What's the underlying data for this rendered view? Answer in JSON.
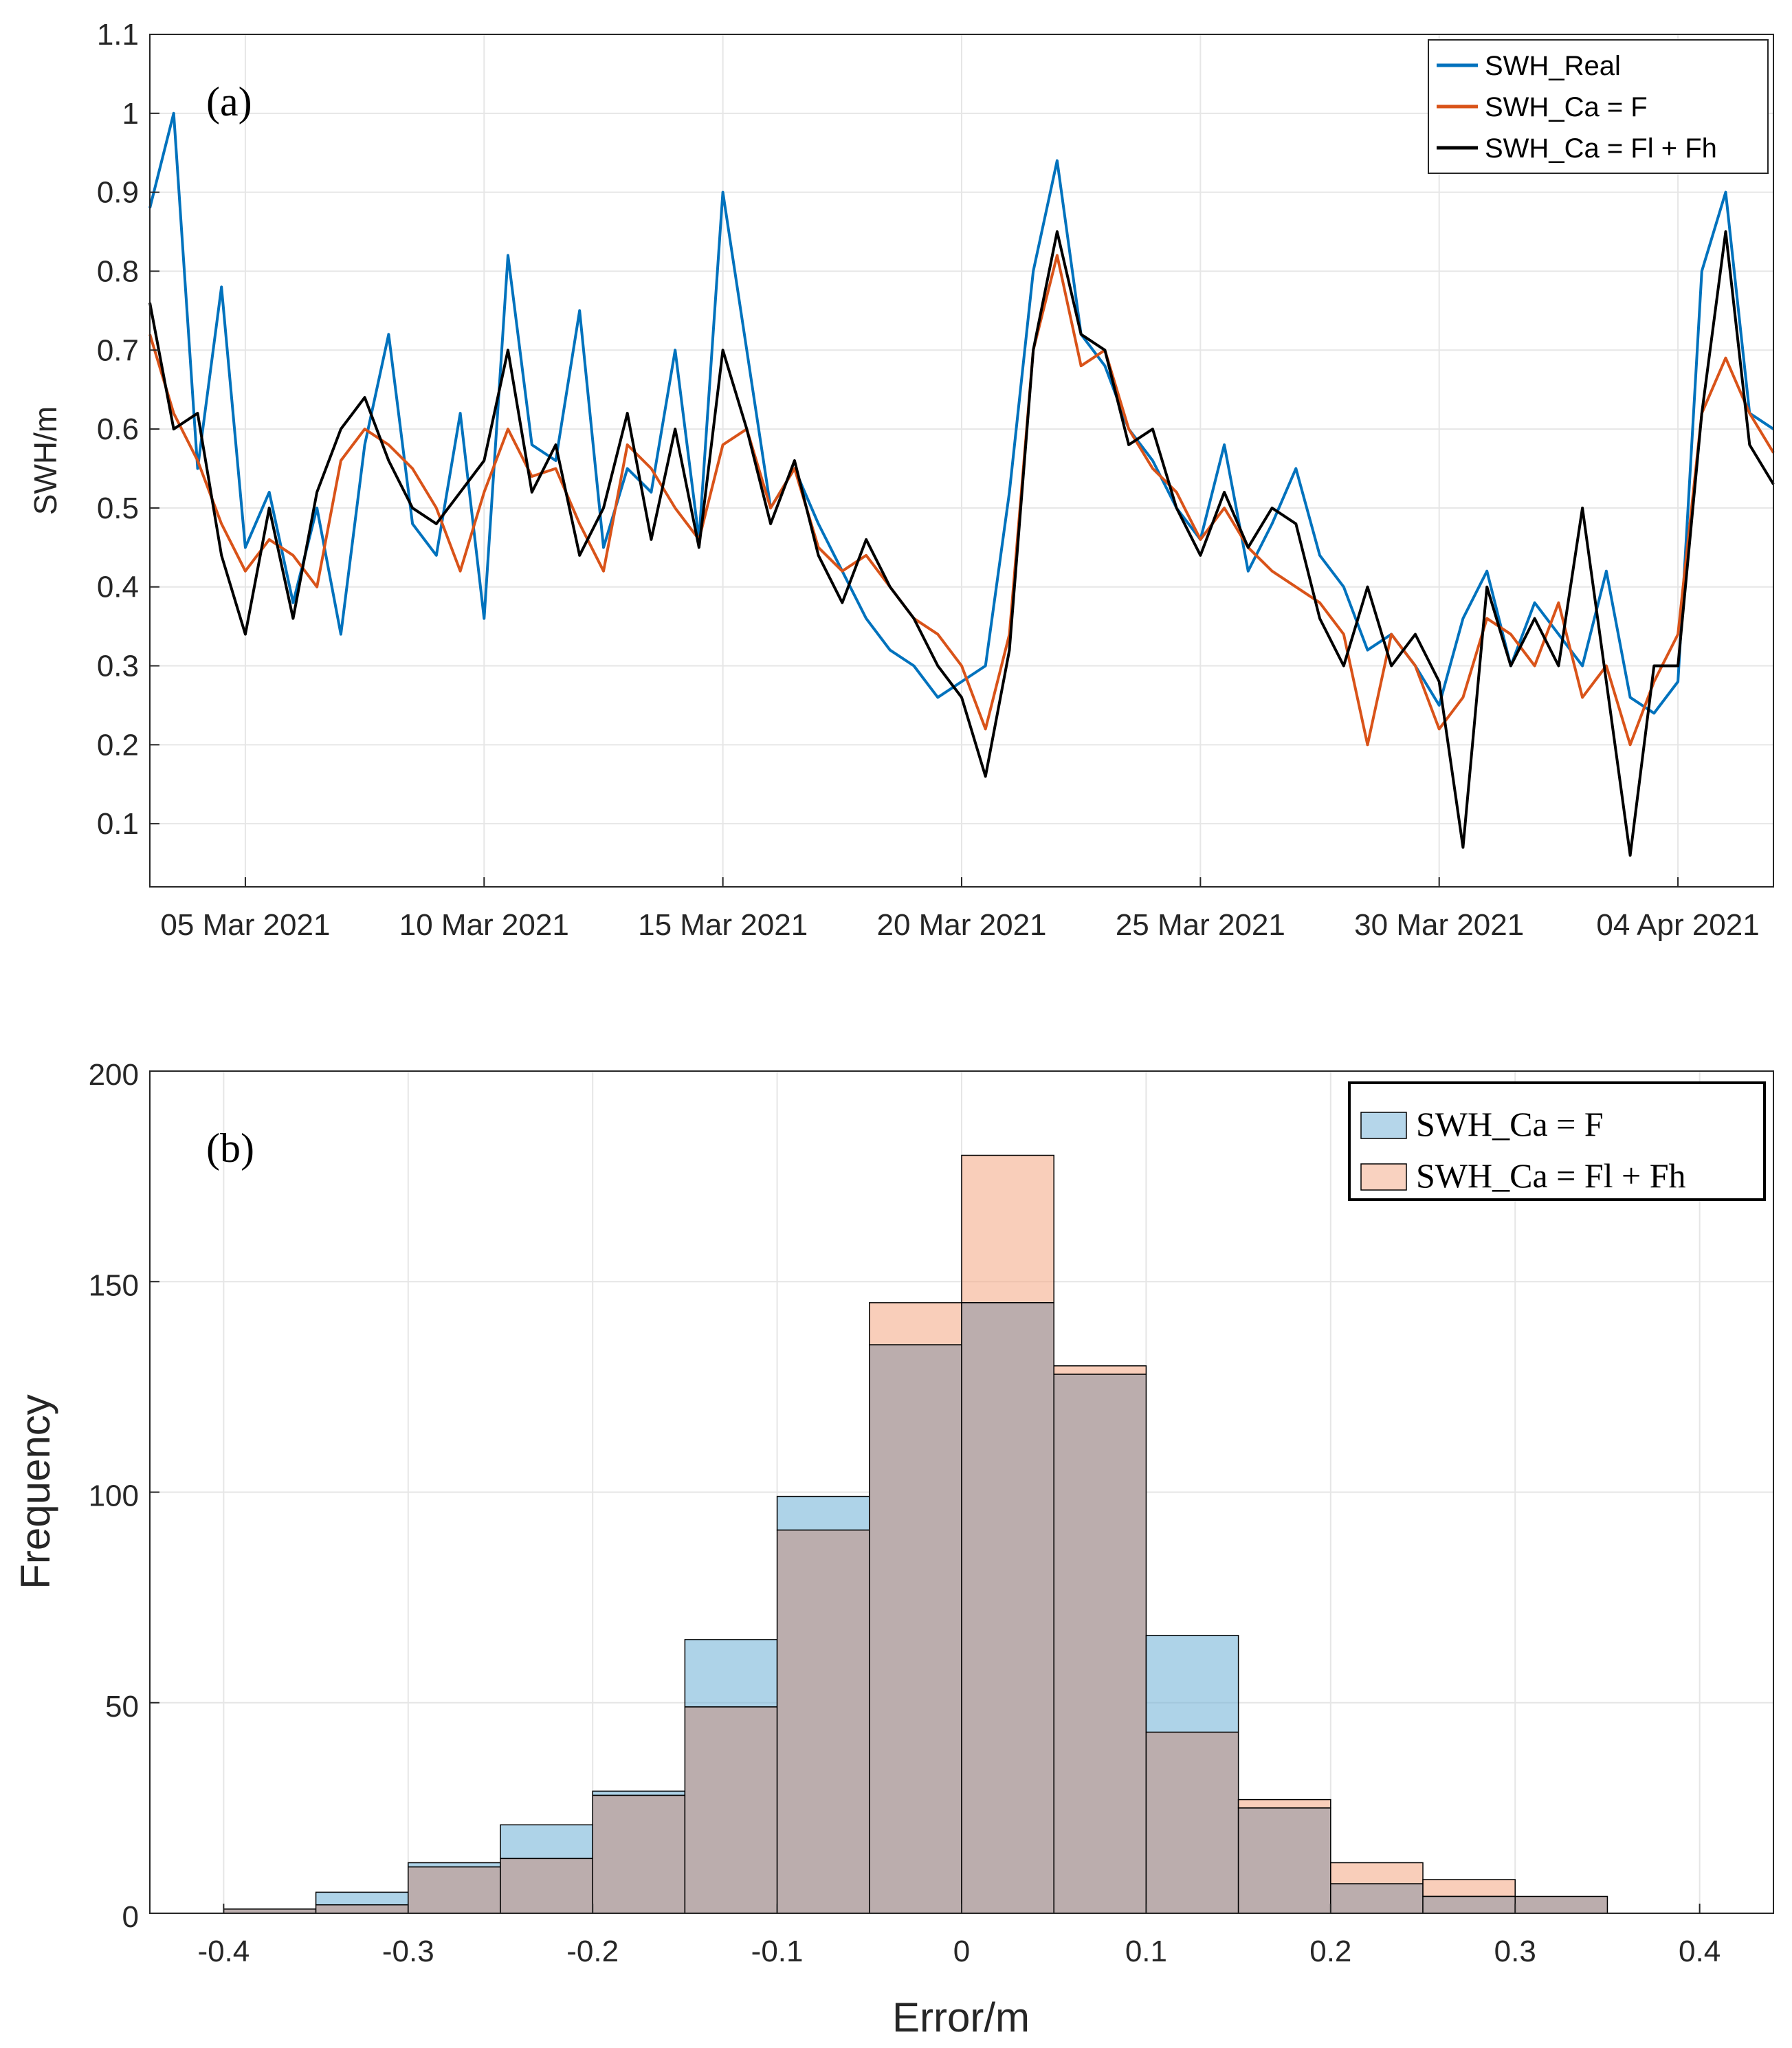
{
  "chart_data": [
    {
      "type": "line",
      "panel_label": "(a)",
      "ylabel": "SWH/m",
      "ylim": [
        0.02,
        1.1
      ],
      "yticks": [
        0.1,
        0.2,
        0.3,
        0.4,
        0.5,
        0.6,
        0.7,
        0.8,
        0.9,
        1,
        1.1
      ],
      "xlim": [
        "2021-03-03",
        "2021-04-06"
      ],
      "xticks": [
        {
          "date": "2021-03-05",
          "label": "05 Mar 2021"
        },
        {
          "date": "2021-03-10",
          "label": "10 Mar 2021"
        },
        {
          "date": "2021-03-15",
          "label": "15 Mar 2021"
        },
        {
          "date": "2021-03-20",
          "label": "20 Mar 2021"
        },
        {
          "date": "2021-03-25",
          "label": "25 Mar 2021"
        },
        {
          "date": "2021-03-30",
          "label": "30 Mar 2021"
        },
        {
          "date": "2021-04-04",
          "label": "04 Apr 2021"
        }
      ],
      "grid": true,
      "legend_position": "top-right",
      "series": [
        {
          "name": "SWH_Real",
          "color": "#0072BD",
          "x": [
            "2021-03-03",
            "2021-03-03 12:00",
            "2021-03-04",
            "2021-03-04 12:00",
            "2021-03-05",
            "2021-03-05 12:00",
            "2021-03-06",
            "2021-03-06 12:00",
            "2021-03-07",
            "2021-03-07 12:00",
            "2021-03-08",
            "2021-03-08 12:00",
            "2021-03-09",
            "2021-03-09 12:00",
            "2021-03-10",
            "2021-03-10 12:00",
            "2021-03-11",
            "2021-03-11 12:00",
            "2021-03-12",
            "2021-03-12 12:00",
            "2021-03-13",
            "2021-03-13 12:00",
            "2021-03-14",
            "2021-03-14 12:00",
            "2021-03-15",
            "2021-03-15 12:00",
            "2021-03-16",
            "2021-03-16 12:00",
            "2021-03-17",
            "2021-03-17 12:00",
            "2021-03-18",
            "2021-03-18 12:00",
            "2021-03-19",
            "2021-03-19 12:00",
            "2021-03-20",
            "2021-03-20 12:00",
            "2021-03-21",
            "2021-03-21 12:00",
            "2021-03-22",
            "2021-03-22 12:00",
            "2021-03-23",
            "2021-03-23 12:00",
            "2021-03-24",
            "2021-03-24 12:00",
            "2021-03-25",
            "2021-03-25 12:00",
            "2021-03-26",
            "2021-03-26 12:00",
            "2021-03-27",
            "2021-03-27 12:00",
            "2021-03-28",
            "2021-03-28 12:00",
            "2021-03-29",
            "2021-03-29 12:00",
            "2021-03-30",
            "2021-03-30 12:00",
            "2021-03-31",
            "2021-03-31 12:00",
            "2021-04-01",
            "2021-04-01 12:00",
            "2021-04-02",
            "2021-04-02 12:00",
            "2021-04-03",
            "2021-04-03 12:00",
            "2021-04-04",
            "2021-04-04 12:00",
            "2021-04-05",
            "2021-04-05 12:00",
            "2021-04-06"
          ],
          "y": [
            0.88,
            1.0,
            0.55,
            0.78,
            0.45,
            0.52,
            0.38,
            0.5,
            0.34,
            0.58,
            0.72,
            0.48,
            0.44,
            0.62,
            0.36,
            0.82,
            0.58,
            0.56,
            0.75,
            0.45,
            0.55,
            0.52,
            0.7,
            0.46,
            0.9,
            0.7,
            0.5,
            0.55,
            0.48,
            0.42,
            0.36,
            0.32,
            0.3,
            0.26,
            0.28,
            0.3,
            0.52,
            0.8,
            0.94,
            0.72,
            0.68,
            0.6,
            0.56,
            0.5,
            0.46,
            0.58,
            0.42,
            0.48,
            0.55,
            0.44,
            0.4,
            0.32,
            0.34,
            0.3,
            0.25,
            0.36,
            0.42,
            0.3,
            0.38,
            0.34,
            0.3,
            0.42,
            0.26,
            0.24,
            0.28,
            0.8,
            0.9,
            0.62,
            0.6
          ]
        },
        {
          "name": "SWH_Ca = F",
          "color": "#D95319",
          "x": [
            "2021-03-03",
            "2021-03-03 12:00",
            "2021-03-04",
            "2021-03-04 12:00",
            "2021-03-05",
            "2021-03-05 12:00",
            "2021-03-06",
            "2021-03-06 12:00",
            "2021-03-07",
            "2021-03-07 12:00",
            "2021-03-08",
            "2021-03-08 12:00",
            "2021-03-09",
            "2021-03-09 12:00",
            "2021-03-10",
            "2021-03-10 12:00",
            "2021-03-11",
            "2021-03-11 12:00",
            "2021-03-12",
            "2021-03-12 12:00",
            "2021-03-13",
            "2021-03-13 12:00",
            "2021-03-14",
            "2021-03-14 12:00",
            "2021-03-15",
            "2021-03-15 12:00",
            "2021-03-16",
            "2021-03-16 12:00",
            "2021-03-17",
            "2021-03-17 12:00",
            "2021-03-18",
            "2021-03-18 12:00",
            "2021-03-19",
            "2021-03-19 12:00",
            "2021-03-20",
            "2021-03-20 12:00",
            "2021-03-21",
            "2021-03-21 12:00",
            "2021-03-22",
            "2021-03-22 12:00",
            "2021-03-23",
            "2021-03-23 12:00",
            "2021-03-24",
            "2021-03-24 12:00",
            "2021-03-25",
            "2021-03-25 12:00",
            "2021-03-26",
            "2021-03-26 12:00",
            "2021-03-27",
            "2021-03-27 12:00",
            "2021-03-28",
            "2021-03-28 12:00",
            "2021-03-29",
            "2021-03-29 12:00",
            "2021-03-30",
            "2021-03-30 12:00",
            "2021-03-31",
            "2021-03-31 12:00",
            "2021-04-01",
            "2021-04-01 12:00",
            "2021-04-02",
            "2021-04-02 12:00",
            "2021-04-03",
            "2021-04-03 12:00",
            "2021-04-04",
            "2021-04-04 12:00",
            "2021-04-05",
            "2021-04-05 12:00",
            "2021-04-06"
          ],
          "y": [
            0.72,
            0.62,
            0.56,
            0.48,
            0.42,
            0.46,
            0.44,
            0.4,
            0.56,
            0.6,
            0.58,
            0.55,
            0.5,
            0.42,
            0.52,
            0.6,
            0.54,
            0.55,
            0.48,
            0.42,
            0.58,
            0.55,
            0.5,
            0.46,
            0.58,
            0.6,
            0.5,
            0.55,
            0.45,
            0.42,
            0.44,
            0.4,
            0.36,
            0.34,
            0.3,
            0.22,
            0.34,
            0.7,
            0.82,
            0.68,
            0.7,
            0.6,
            0.55,
            0.52,
            0.46,
            0.5,
            0.45,
            0.42,
            0.4,
            0.38,
            0.34,
            0.2,
            0.34,
            0.3,
            0.22,
            0.26,
            0.36,
            0.34,
            0.3,
            0.38,
            0.26,
            0.3,
            0.2,
            0.28,
            0.34,
            0.62,
            0.69,
            0.62,
            0.57
          ]
        },
        {
          "name": "SWH_Ca = Fl + Fh",
          "color": "#000000",
          "x": [
            "2021-03-03",
            "2021-03-03 12:00",
            "2021-03-04",
            "2021-03-04 12:00",
            "2021-03-05",
            "2021-03-05 12:00",
            "2021-03-06",
            "2021-03-06 12:00",
            "2021-03-07",
            "2021-03-07 12:00",
            "2021-03-08",
            "2021-03-08 12:00",
            "2021-03-09",
            "2021-03-09 12:00",
            "2021-03-10",
            "2021-03-10 12:00",
            "2021-03-11",
            "2021-03-11 12:00",
            "2021-03-12",
            "2021-03-12 12:00",
            "2021-03-13",
            "2021-03-13 12:00",
            "2021-03-14",
            "2021-03-14 12:00",
            "2021-03-15",
            "2021-03-15 12:00",
            "2021-03-16",
            "2021-03-16 12:00",
            "2021-03-17",
            "2021-03-17 12:00",
            "2021-03-18",
            "2021-03-18 12:00",
            "2021-03-19",
            "2021-03-19 12:00",
            "2021-03-20",
            "2021-03-20 12:00",
            "2021-03-21",
            "2021-03-21 12:00",
            "2021-03-22",
            "2021-03-22 12:00",
            "2021-03-23",
            "2021-03-23 12:00",
            "2021-03-24",
            "2021-03-24 12:00",
            "2021-03-25",
            "2021-03-25 12:00",
            "2021-03-26",
            "2021-03-26 12:00",
            "2021-03-27",
            "2021-03-27 12:00",
            "2021-03-28",
            "2021-03-28 12:00",
            "2021-03-29",
            "2021-03-29 12:00",
            "2021-03-30",
            "2021-03-30 12:00",
            "2021-03-31",
            "2021-03-31 12:00",
            "2021-04-01",
            "2021-04-01 12:00",
            "2021-04-02",
            "2021-04-02 12:00",
            "2021-04-03",
            "2021-04-03 12:00",
            "2021-04-04",
            "2021-04-04 12:00",
            "2021-04-05",
            "2021-04-05 12:00",
            "2021-04-06"
          ],
          "y": [
            0.76,
            0.6,
            0.62,
            0.44,
            0.34,
            0.5,
            0.36,
            0.52,
            0.6,
            0.64,
            0.56,
            0.5,
            0.48,
            0.52,
            0.56,
            0.7,
            0.52,
            0.58,
            0.44,
            0.5,
            0.62,
            0.46,
            0.6,
            0.45,
            0.7,
            0.6,
            0.48,
            0.56,
            0.44,
            0.38,
            0.46,
            0.4,
            0.36,
            0.3,
            0.26,
            0.16,
            0.32,
            0.7,
            0.85,
            0.72,
            0.7,
            0.58,
            0.6,
            0.5,
            0.44,
            0.52,
            0.45,
            0.5,
            0.48,
            0.36,
            0.3,
            0.4,
            0.3,
            0.34,
            0.28,
            0.07,
            0.4,
            0.3,
            0.36,
            0.3,
            0.5,
            0.28,
            0.06,
            0.3,
            0.3,
            0.62,
            0.85,
            0.58,
            0.53
          ]
        }
      ]
    },
    {
      "type": "bar",
      "panel_label": "(b)",
      "xlabel": "Error/m",
      "ylabel": "Frequency",
      "xlim": [
        -0.44,
        0.44
      ],
      "ylim": [
        0,
        200
      ],
      "xticks": [
        "-0.4",
        "-0.3",
        "-0.2",
        "-0.1",
        "0",
        "0.1",
        "0.2",
        "0.3",
        "0.4"
      ],
      "yticks": [
        "0",
        "50",
        "100",
        "150",
        "200"
      ],
      "grid": true,
      "legend_position": "top-right",
      "bin_edges": [
        -0.4,
        -0.35,
        -0.3,
        -0.25,
        -0.2,
        -0.15,
        -0.1,
        -0.05,
        0,
        0.05,
        0.1,
        0.15,
        0.2,
        0.25,
        0.3,
        0.35
      ],
      "series": [
        {
          "name": "SWH_Ca = F",
          "color": "#6BAED6",
          "values": [
            1,
            5,
            12,
            21,
            29,
            65,
            99,
            135,
            145,
            128,
            66,
            25,
            7,
            4,
            4
          ]
        },
        {
          "name": "SWH_Ca = Fl + Fh",
          "color": "#F4A582",
          "values": [
            1,
            2,
            11,
            13,
            28,
            49,
            91,
            145,
            180,
            130,
            43,
            27,
            12,
            8,
            4
          ]
        }
      ],
      "overlap_color": "#BBADAD"
    }
  ]
}
